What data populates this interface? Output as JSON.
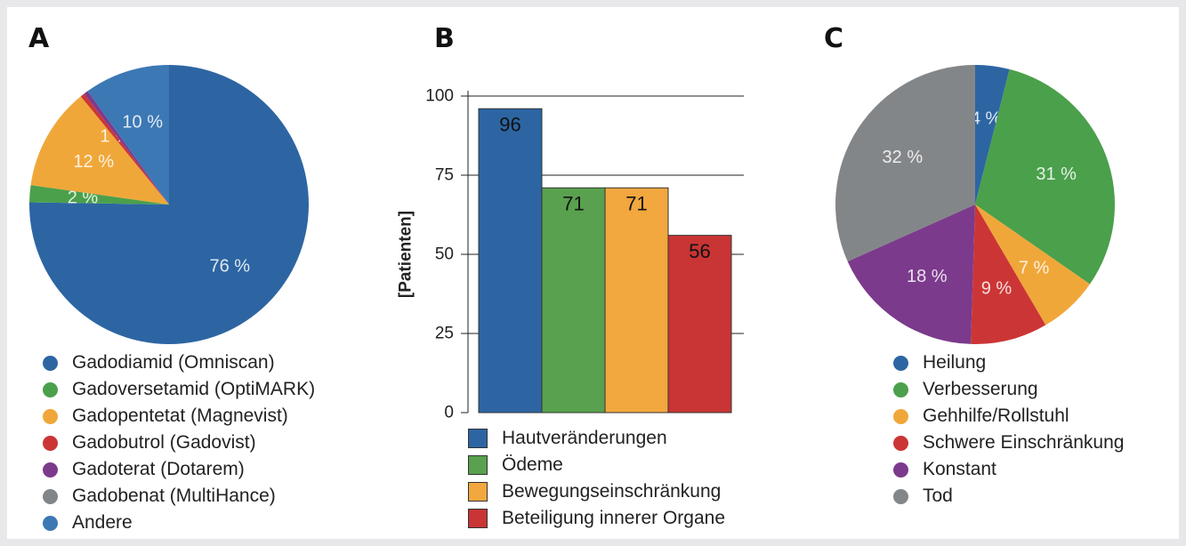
{
  "chart_data": [
    {
      "type": "pie",
      "panel_label": "A",
      "labels": [
        "Gadodiamid (Omniscan)",
        "Gadoversetamid (OptiMARK)",
        "Gadopentetat (Magnevist)",
        "Gadobutrol (Gadovist)",
        "Gadoterat (Dotarem)",
        "Gadobenat (MultiHance)",
        "Andere"
      ],
      "values": [
        76,
        2,
        12,
        0.5,
        0.5,
        0,
        10
      ],
      "data_labels": [
        "76 %",
        "2 %",
        "12 %",
        "1 %",
        "",
        "",
        "10 %"
      ],
      "colors": [
        "#2d65a3",
        "#4ba04b",
        "#f0a73a",
        "#cc3535",
        "#7c3a8c",
        "#838689",
        "#3c78b4"
      ],
      "legend_position": "bottom"
    },
    {
      "type": "bar",
      "panel_label": "B",
      "categories": [
        "Hautveränderungen",
        "Ödeme",
        "Bewegungseinschränkung",
        "Beteiligung innerer Organe"
      ],
      "values": [
        96,
        71,
        71,
        56
      ],
      "data_labels": [
        "96",
        "71",
        "71",
        "56"
      ],
      "colors": [
        "#2d65a3",
        "#59a14e",
        "#f2a73f",
        "#c93434"
      ],
      "ylabel": "[Patienten]",
      "ylim": [
        0,
        100
      ],
      "yticks": [
        "0",
        "25",
        "50",
        "75",
        "100"
      ],
      "grid": true,
      "legend_position": "bottom"
    },
    {
      "type": "pie",
      "panel_label": "C",
      "labels": [
        "Heilung",
        "Verbesserung",
        "Gehhilfe/Rollstuhl",
        "Schwere Einschränkung",
        "Konstant",
        "Tod"
      ],
      "values": [
        4,
        31,
        7,
        9,
        18,
        32
      ],
      "data_labels": [
        "4 %",
        "31 %",
        "7 %",
        "9 %",
        "18 %",
        "32 %"
      ],
      "colors": [
        "#2d65a3",
        "#4ba04b",
        "#f0a73a",
        "#cc3535",
        "#7c3a8c",
        "#838689"
      ],
      "legend_position": "bottom"
    }
  ]
}
